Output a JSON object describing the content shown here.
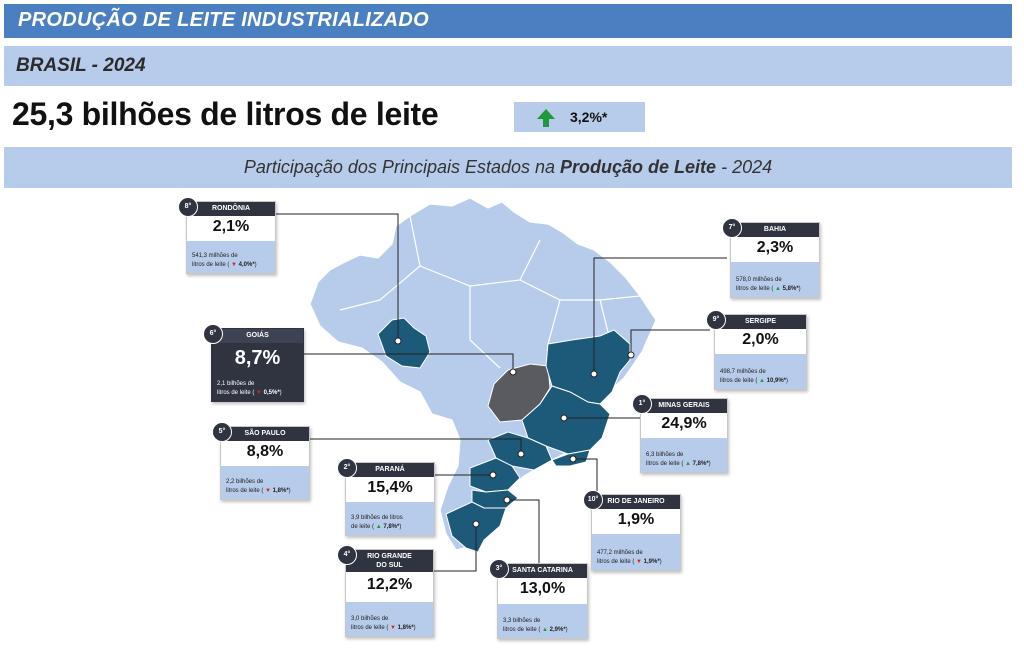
{
  "header": {
    "title": "PRODUÇÃO DE LEITE INDUSTRIALIZADO",
    "subtitle": "BRASIL - 2024",
    "headline": "25,3 bilhões de litros de leite",
    "growth": "3,2%*"
  },
  "chart_data": {
    "type": "map",
    "title_prefix": "Participação dos Principais Estados na ",
    "title_bold": "Produção de Leite",
    "title_suffix": " - 2024",
    "states": [
      {
        "rank": "1°",
        "name": "MINAS GERAIS",
        "share": "24,9%",
        "volume_line1": "6,3 bilhões de",
        "volume_line2": "litros de leite",
        "change": "7,8%*",
        "direction": "up"
      },
      {
        "rank": "2°",
        "name": "PARANÁ",
        "share": "15,4%",
        "volume_line1": "3,9 bilhões de litros",
        "volume_line2": "de leite",
        "change": "7,8%*",
        "direction": "up"
      },
      {
        "rank": "3°",
        "name": "SANTA CATARINA",
        "share": "13,0%",
        "volume_line1": "3,3 bilhões de",
        "volume_line2": "litros de leite",
        "change": "2,9%*",
        "direction": "up"
      },
      {
        "rank": "4°",
        "name": "RIO GRANDE",
        "name2": "DO SUL",
        "share": "12,2%",
        "volume_line1": "3,0 bilhões de",
        "volume_line2": "litros de leite",
        "change": "1,8%*",
        "direction": "down"
      },
      {
        "rank": "5°",
        "name": "SÃO PAULO",
        "share": "8,8%",
        "volume_line1": "2,2 bilhões de",
        "volume_line2": "litros de leite",
        "change": "1,8%*",
        "direction": "down"
      },
      {
        "rank": "6°",
        "name": "GOIÁS",
        "share": "8,7%",
        "volume_line1": "2,1 bilhões de",
        "volume_line2": "litros de leite",
        "change": "0,5%*",
        "direction": "down"
      },
      {
        "rank": "7°",
        "name": "BAHIA",
        "share": "2,3%",
        "volume_line1": "578,0 milhões de",
        "volume_line2": "litros de leite",
        "change": "5,8%*",
        "direction": "up"
      },
      {
        "rank": "8°",
        "name": "RONDÔNIA",
        "share": "2,1%",
        "volume_line1": "541,3 milhões de",
        "volume_line2": "litros de leite",
        "change": "4,0%*",
        "direction": "down"
      },
      {
        "rank": "9°",
        "name": "SERGIPE",
        "share": "2,0%",
        "volume_line1": "498,7 milhões de",
        "volume_line2": "litros de leite",
        "change": "10,9%*",
        "direction": "up"
      },
      {
        "rank": "10°",
        "name": "RIO DE JANEIRO",
        "share": "1,9%",
        "volume_line1": "477,2 milhões de",
        "volume_line2": "litros de leite",
        "change": "1,9%*",
        "direction": "down"
      }
    ]
  },
  "colors": {
    "header_bar": "#4a7fc1",
    "light_bar": "#b7cbea",
    "map_light": "#b7cbea",
    "map_highlight": "#1d5a7a",
    "map_goias": "#595b60",
    "card_dark": "#2f3440",
    "up": "#1e9a3a",
    "down": "#d9261c"
  }
}
